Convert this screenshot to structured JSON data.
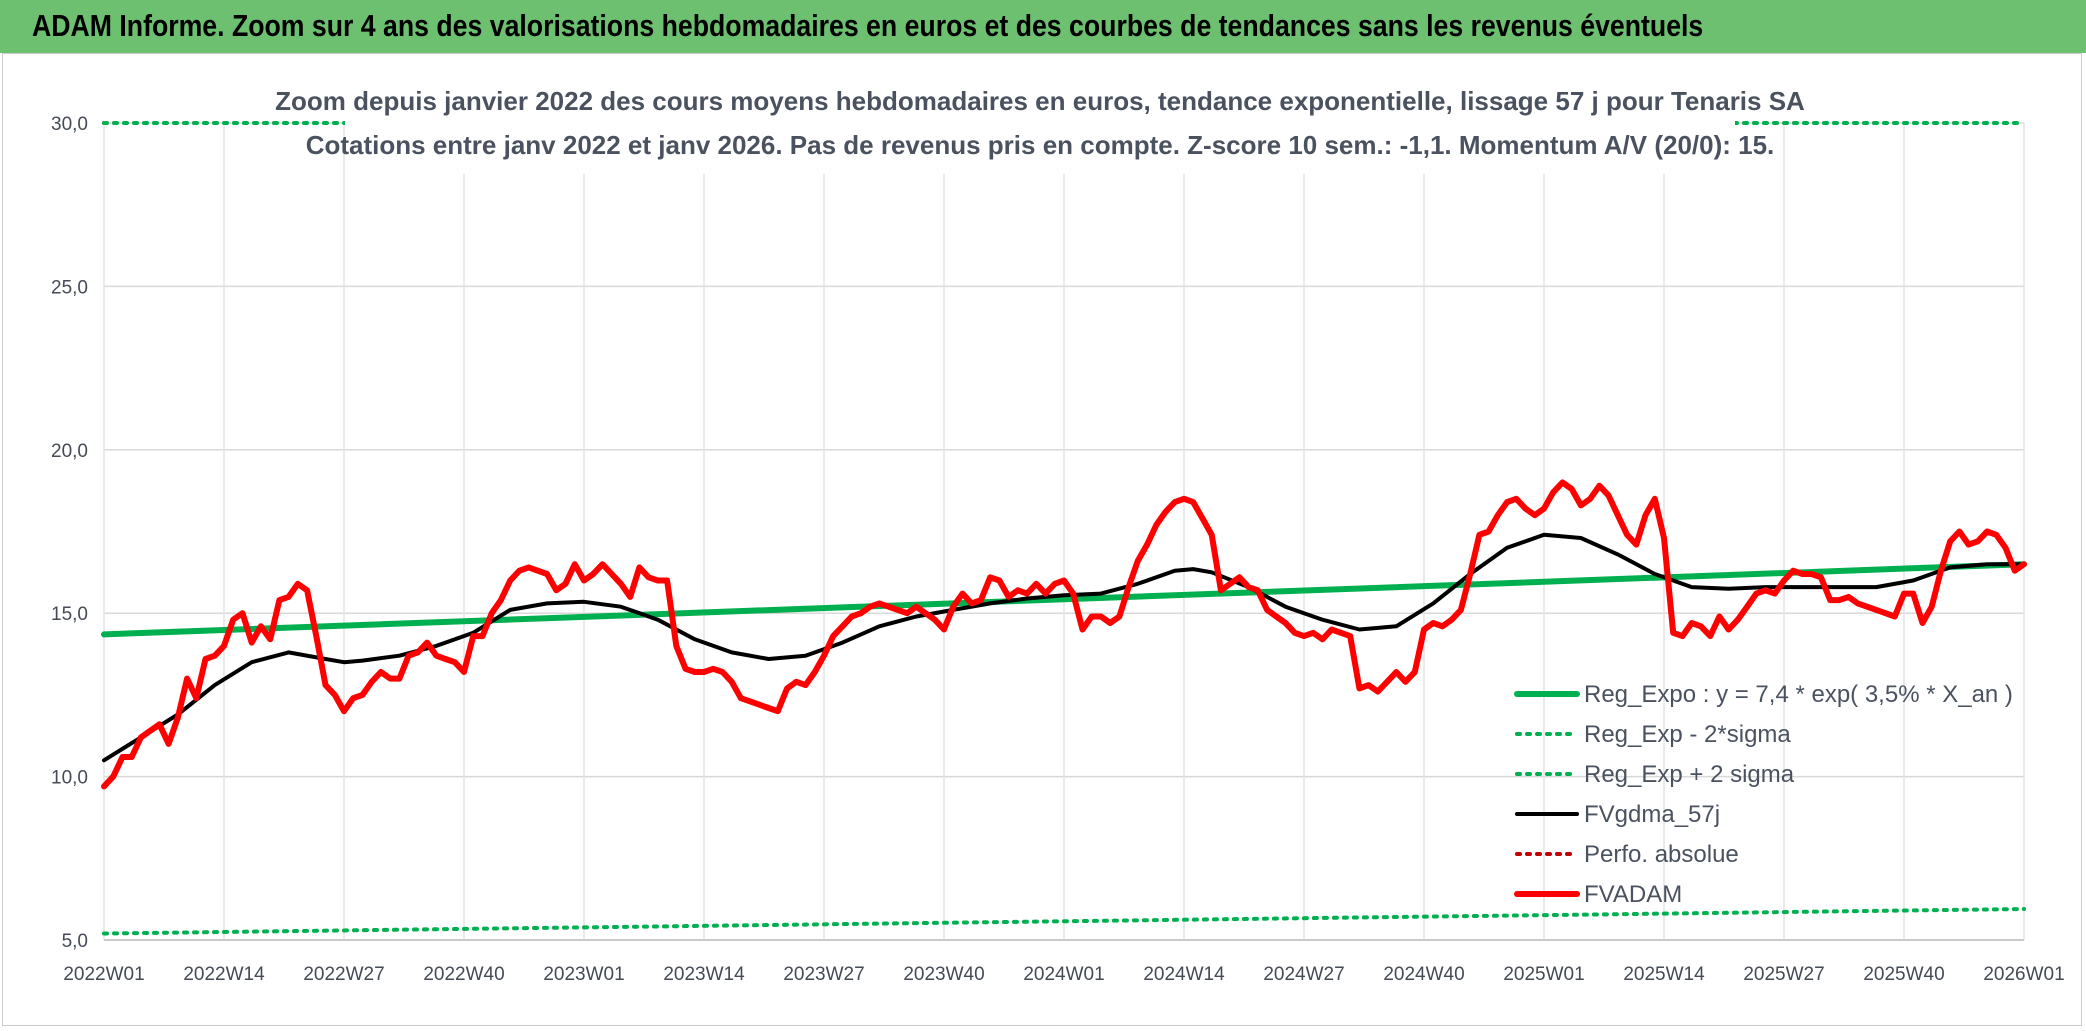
{
  "banner": {
    "title": "ADAM Informe. Zoom sur 4 ans des valorisations hebdomadaires en euros et des courbes de tendances sans les revenus éventuels"
  },
  "colors": {
    "banner": "#6cc070",
    "reg_expo": "#00b050",
    "fvgdma": "#000000",
    "fvadam": "#ff0000",
    "perfo": "#c00000"
  },
  "chart_data": {
    "type": "line",
    "title": [
      "Zoom depuis janvier 2022 des cours moyens hebdomadaires en euros, tendance exponentielle, lissage 57 j pour Tenaris SA",
      "Cotations entre janv 2022 et janv 2026. Pas de revenus pris en compte. Z-score 10 sem.: -1,1. Momentum A/V (20/0): 15."
    ],
    "xlabel": "",
    "ylabel": "",
    "ylim": [
      5,
      30
    ],
    "y_ticks": [
      "5,0",
      "10,0",
      "15,0",
      "20,0",
      "25,0",
      "30,0"
    ],
    "y_tick_values": [
      5,
      10,
      15,
      20,
      25,
      30
    ],
    "x_ticks": [
      "2022W01",
      "2022W14",
      "2022W27",
      "2022W40",
      "2023W01",
      "2023W14",
      "2023W27",
      "2023W40",
      "2024W01",
      "2024W14",
      "2024W27",
      "2024W40",
      "2025W01",
      "2025W14",
      "2025W27",
      "2025W40",
      "2026W01"
    ],
    "x_tick_weeks": [
      0,
      13,
      26,
      39,
      52,
      65,
      78,
      91,
      104,
      117,
      130,
      143,
      156,
      169,
      182,
      195,
      208
    ],
    "x_range": [
      0,
      208
    ],
    "grid": true,
    "legend_position": "right",
    "series": [
      {
        "name": "Reg_Expo : y = 7,4 * exp( 3,5% *  X_an )",
        "style": "solid-thick",
        "color": "#00b050",
        "x": [
          0,
          208
        ],
        "values": [
          14.35,
          16.5
        ]
      },
      {
        "name": "Reg_Exp - 2*sigma",
        "style": "dotted",
        "color": "#00b050",
        "x": [
          0,
          208
        ],
        "values": [
          5.2,
          5.95
        ]
      },
      {
        "name": "Reg_Exp + 2 sigma",
        "style": "dotted",
        "color": "#00b050",
        "x": [
          0,
          208
        ],
        "values": [
          30.0,
          30.0
        ]
      },
      {
        "name": "FVgdma_57j",
        "style": "solid",
        "color": "#000000",
        "x": [
          0,
          4,
          8,
          12,
          16,
          20,
          24,
          26,
          28,
          32,
          36,
          40,
          44,
          48,
          52,
          56,
          60,
          64,
          68,
          72,
          76,
          80,
          84,
          88,
          92,
          96,
          100,
          104,
          108,
          112,
          116,
          118,
          120,
          124,
          128,
          132,
          136,
          140,
          144,
          148,
          152,
          156,
          160,
          164,
          168,
          172,
          176,
          180,
          184,
          188,
          192,
          196,
          200,
          204,
          208
        ],
        "values": [
          10.5,
          11.2,
          11.9,
          12.8,
          13.5,
          13.8,
          13.6,
          13.5,
          13.55,
          13.7,
          14.0,
          14.4,
          15.1,
          15.3,
          15.35,
          15.2,
          14.8,
          14.2,
          13.8,
          13.6,
          13.7,
          14.1,
          14.6,
          14.9,
          15.1,
          15.3,
          15.45,
          15.55,
          15.6,
          15.9,
          16.3,
          16.35,
          16.25,
          15.8,
          15.2,
          14.8,
          14.5,
          14.6,
          15.3,
          16.2,
          17.0,
          17.4,
          17.3,
          16.8,
          16.2,
          15.8,
          15.75,
          15.8,
          15.8,
          15.8,
          15.8,
          16.0,
          16.4,
          16.5,
          16.5
        ]
      },
      {
        "name": "Perfo. absolue",
        "style": "dotted",
        "color": "#c00000",
        "x": [],
        "values": []
      },
      {
        "name": "FVADAM",
        "style": "solid-thick",
        "color": "#ff0000",
        "x": [
          0,
          1,
          2,
          3,
          4,
          5,
          6,
          7,
          8,
          9,
          10,
          11,
          12,
          13,
          14,
          15,
          16,
          17,
          18,
          19,
          20,
          21,
          22,
          23,
          24,
          25,
          26,
          27,
          28,
          29,
          30,
          31,
          32,
          33,
          34,
          35,
          36,
          37,
          38,
          39,
          40,
          41,
          42,
          43,
          44,
          45,
          46,
          47,
          48,
          49,
          50,
          51,
          52,
          53,
          54,
          55,
          56,
          57,
          58,
          59,
          60,
          61,
          62,
          63,
          64,
          65,
          66,
          67,
          68,
          69,
          70,
          71,
          72,
          73,
          74,
          75,
          76,
          77,
          78,
          79,
          80,
          81,
          82,
          83,
          84,
          85,
          86,
          87,
          88,
          89,
          90,
          91,
          92,
          93,
          94,
          95,
          96,
          97,
          98,
          99,
          100,
          101,
          102,
          103,
          104,
          105,
          106,
          107,
          108,
          109,
          110,
          111,
          112,
          113,
          114,
          115,
          116,
          117,
          118,
          119,
          120,
          121,
          122,
          123,
          124,
          125,
          126,
          127,
          128,
          129,
          130,
          131,
          132,
          133,
          134,
          135,
          136,
          137,
          138,
          139,
          140,
          141,
          142,
          143,
          144,
          145,
          146,
          147,
          148,
          149,
          150,
          151,
          152,
          153,
          154,
          155,
          156,
          157,
          158,
          159,
          160,
          161,
          162,
          163,
          164,
          165,
          166,
          167,
          168,
          169,
          170,
          171,
          172,
          173,
          174,
          175,
          176,
          177,
          178,
          179,
          180,
          181,
          182,
          183,
          184,
          185,
          186,
          187,
          188,
          189,
          190,
          191,
          192,
          193,
          194,
          195,
          196,
          197,
          198,
          199,
          200,
          201,
          202,
          203,
          204,
          205,
          206,
          207,
          208
        ],
        "values": [
          9.7,
          10.0,
          10.6,
          10.6,
          11.2,
          11.4,
          11.6,
          11.0,
          11.8,
          13.0,
          12.4,
          13.6,
          13.7,
          14.0,
          14.8,
          15.0,
          14.1,
          14.6,
          14.2,
          15.4,
          15.5,
          15.9,
          15.7,
          14.3,
          12.8,
          12.5,
          12.0,
          12.4,
          12.5,
          12.9,
          13.2,
          13.0,
          13.0,
          13.7,
          13.8,
          14.1,
          13.7,
          13.6,
          13.5,
          13.2,
          14.3,
          14.3,
          15.0,
          15.4,
          16.0,
          16.3,
          16.4,
          16.3,
          16.2,
          15.7,
          15.9,
          16.5,
          16.0,
          16.2,
          16.5,
          16.2,
          15.9,
          15.5,
          16.4,
          16.1,
          16.0,
          16.0,
          14.0,
          13.3,
          13.2,
          13.2,
          13.3,
          13.2,
          12.9,
          12.4,
          12.3,
          12.2,
          12.1,
          12.0,
          12.7,
          12.9,
          12.8,
          13.2,
          13.7,
          14.3,
          14.6,
          14.9,
          15.0,
          15.2,
          15.3,
          15.2,
          15.1,
          15.0,
          15.2,
          15.0,
          14.8,
          14.5,
          15.2,
          15.6,
          15.3,
          15.4,
          16.1,
          16.0,
          15.5,
          15.7,
          15.6,
          15.9,
          15.6,
          15.9,
          16.0,
          15.6,
          14.5,
          14.9,
          14.9,
          14.7,
          14.9,
          15.8,
          16.6,
          17.1,
          17.7,
          18.1,
          18.4,
          18.5,
          18.4,
          17.9,
          17.4,
          15.7,
          15.9,
          16.1,
          15.8,
          15.7,
          15.1,
          14.9,
          14.7,
          14.4,
          14.3,
          14.4,
          14.2,
          14.5,
          14.4,
          14.3,
          12.7,
          12.8,
          12.6,
          12.9,
          13.2,
          12.9,
          13.2,
          14.5,
          14.7,
          14.6,
          14.8,
          15.1,
          16.2,
          17.4,
          17.5,
          18.0,
          18.4,
          18.5,
          18.2,
          18.0,
          18.2,
          18.7,
          19.0,
          18.8,
          18.3,
          18.5,
          18.9,
          18.6,
          18.0,
          17.4,
          17.1,
          18.0,
          18.5,
          17.3,
          14.4,
          14.3,
          14.7,
          14.6,
          14.3,
          14.9,
          14.5,
          14.8,
          15.2,
          15.6,
          15.7,
          15.6,
          16.0,
          16.3,
          16.2,
          16.2,
          16.1,
          15.4,
          15.4,
          15.5,
          15.3,
          15.2,
          15.1,
          15.0,
          14.9,
          15.6,
          15.6,
          14.7,
          15.2,
          16.3,
          17.2,
          17.5,
          17.1,
          17.2,
          17.5,
          17.4,
          17.0,
          16.3,
          16.5
        ]
      }
    ]
  }
}
